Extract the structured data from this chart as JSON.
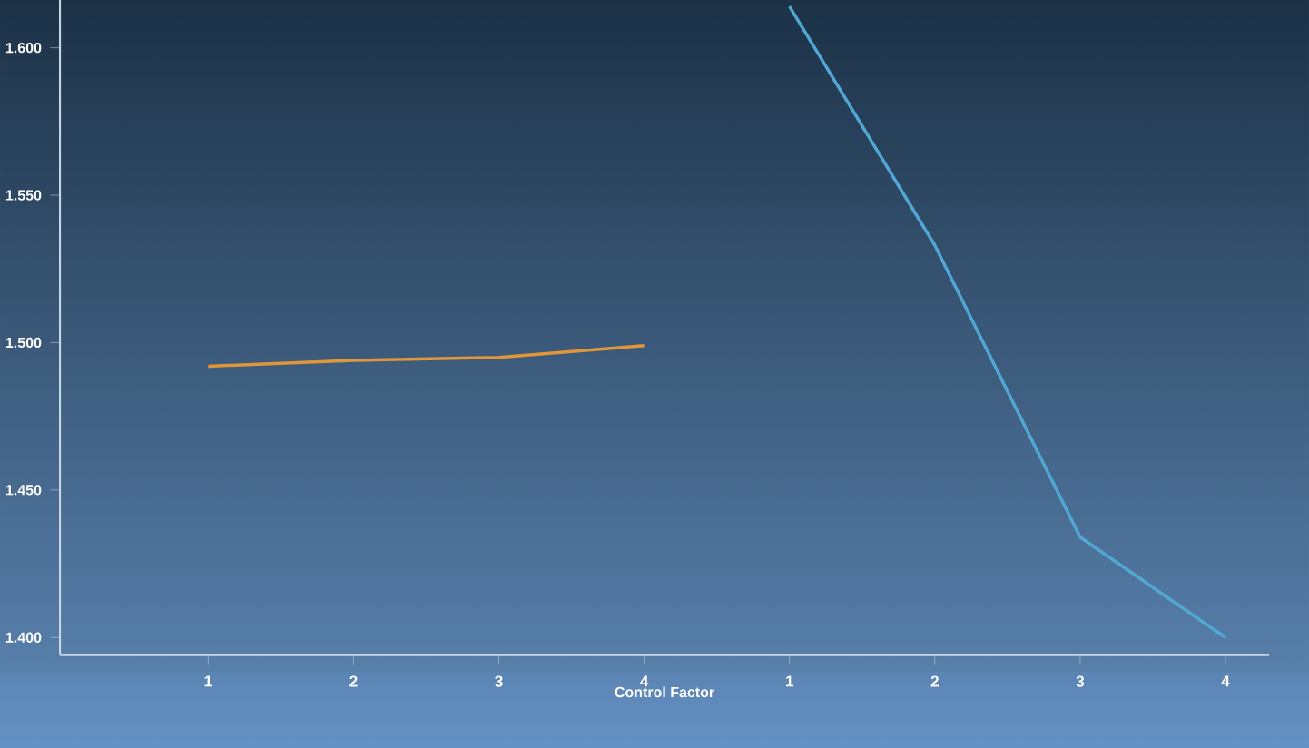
{
  "chart_data": {
    "type": "line",
    "xlabel": "Control Factor",
    "categories": [
      "1",
      "2",
      "3",
      "4",
      "1",
      "2",
      "3",
      "4"
    ],
    "series": [
      {
        "color": "#e0963a",
        "values": [
          1.492,
          1.494,
          1.495,
          1.499,
          null,
          null,
          null,
          null
        ]
      },
      {
        "color": "#52a8d4",
        "values": [
          null,
          null,
          null,
          null,
          1.614,
          1.533,
          1.434,
          1.4
        ]
      }
    ],
    "ylim": [
      1.394,
      1.62
    ],
    "yticks": [
      {
        "value": 1.4,
        "label": "1.400"
      },
      {
        "value": 1.45,
        "label": "1.450"
      },
      {
        "value": 1.5,
        "label": "1.500"
      },
      {
        "value": 1.55,
        "label": "1.550"
      },
      {
        "value": 1.6,
        "label": "1.600"
      }
    ],
    "grid": false,
    "marker": "none",
    "line_style": "solid"
  }
}
